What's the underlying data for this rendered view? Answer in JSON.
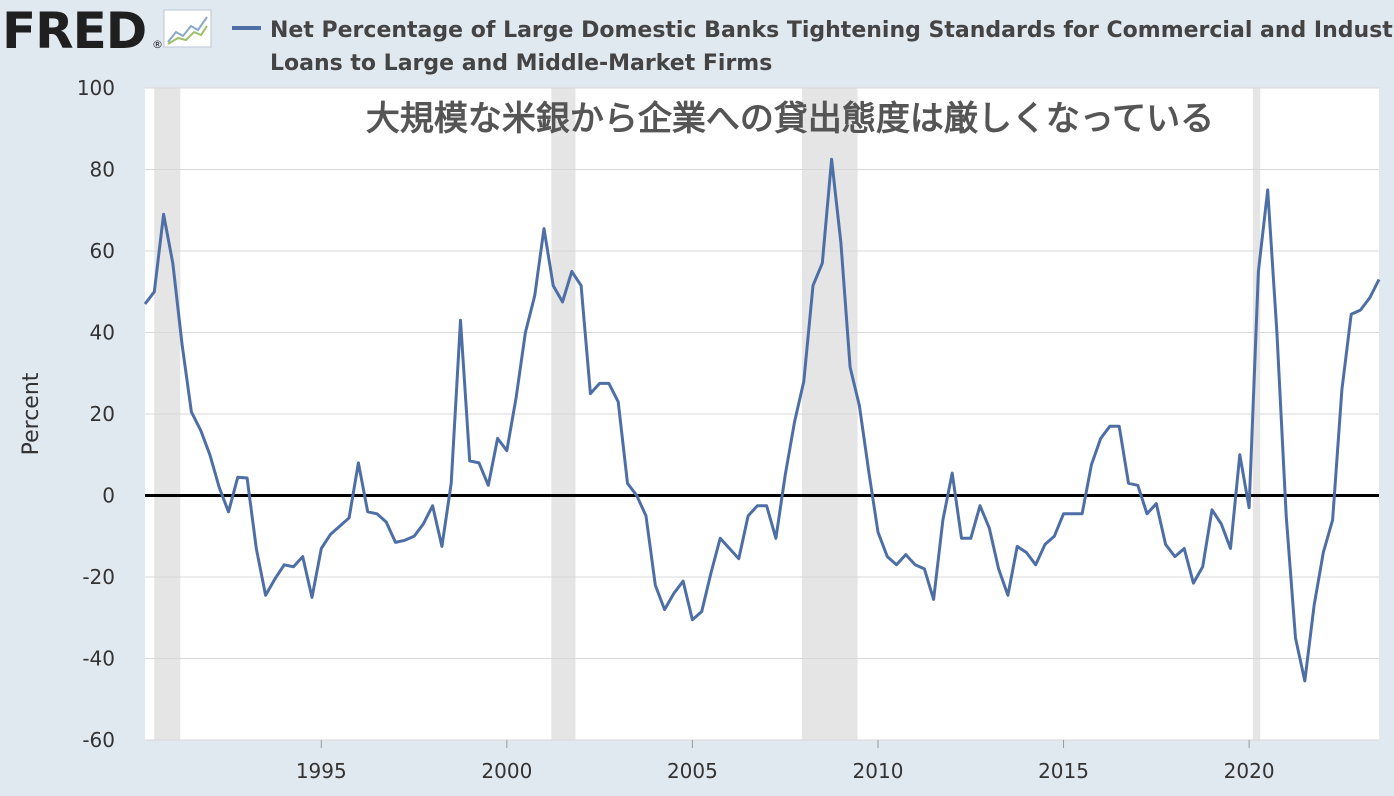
{
  "header": {
    "logo_text": "FRED",
    "logo_mark": "®",
    "logo_graph_icon": "line-graph-icon",
    "legend_title_line1": "Net Percentage of Large Domestic Banks Tightening Standards for Commercial and Industrial",
    "legend_title_line2": "Loans to Large and Middle-Market Firms"
  },
  "annotation": "大規模な米銀から企業への貸出態度は厳しくなっている",
  "colors": {
    "background": "#e1e9f0",
    "plot_background": "#ffffff",
    "series": "#4e6fa6",
    "recession": "#e5e5e5",
    "grid": "#d8d8d8",
    "zero_line": "#000000",
    "text": "#333333",
    "annotation": "#555555"
  },
  "chart_data": {
    "type": "line",
    "ylabel": "Percent",
    "ylim": [
      -60,
      100
    ],
    "yticks": [
      "100",
      "80",
      "60",
      "40",
      "20",
      "0",
      "-20",
      "-40",
      "-60"
    ],
    "xlim": [
      1990.25,
      2023.5
    ],
    "xticks": [
      "1995",
      "2000",
      "2005",
      "2010",
      "2015",
      "2020"
    ],
    "grid": true,
    "zero_line": true,
    "recessions": [
      [
        1990.5,
        1991.2
      ],
      [
        2001.2,
        2001.85
      ],
      [
        2007.95,
        2009.45
      ],
      [
        2020.1,
        2020.3
      ]
    ],
    "series": [
      {
        "name": "Net Percentage of Large Domestic Banks Tightening Standards for Commercial and Industrial Loans to Large and Middle-Market Firms",
        "x": [
          1990.25,
          1990.5,
          1990.75,
          1991.0,
          1991.25,
          1991.5,
          1991.75,
          1992.0,
          1992.25,
          1992.5,
          1992.75,
          1993.0,
          1993.25,
          1993.5,
          1993.75,
          1994.0,
          1994.25,
          1994.5,
          1994.75,
          1995.0,
          1995.25,
          1995.5,
          1995.75,
          1996.0,
          1996.25,
          1996.5,
          1996.75,
          1997.0,
          1997.25,
          1997.5,
          1997.75,
          1998.0,
          1998.25,
          1998.5,
          1998.75,
          1999.0,
          1999.25,
          1999.5,
          1999.75,
          2000.0,
          2000.25,
          2000.5,
          2000.75,
          2001.0,
          2001.25,
          2001.5,
          2001.75,
          2002.0,
          2002.25,
          2002.5,
          2002.75,
          2003.0,
          2003.25,
          2003.5,
          2003.75,
          2004.0,
          2004.25,
          2004.5,
          2004.75,
          2005.0,
          2005.25,
          2005.5,
          2005.75,
          2006.0,
          2006.25,
          2006.5,
          2006.75,
          2007.0,
          2007.25,
          2007.5,
          2007.75,
          2008.0,
          2008.25,
          2008.5,
          2008.75,
          2009.0,
          2009.25,
          2009.5,
          2009.75,
          2010.0,
          2010.25,
          2010.5,
          2010.75,
          2011.0,
          2011.25,
          2011.5,
          2011.75,
          2012.0,
          2012.25,
          2012.5,
          2012.75,
          2013.0,
          2013.25,
          2013.5,
          2013.75,
          2014.0,
          2014.25,
          2014.5,
          2014.75,
          2015.0,
          2015.25,
          2015.5,
          2015.75,
          2016.0,
          2016.25,
          2016.5,
          2016.75,
          2017.0,
          2017.25,
          2017.5,
          2017.75,
          2018.0,
          2018.25,
          2018.5,
          2018.75,
          2019.0,
          2019.25,
          2019.5,
          2019.75,
          2020.0,
          2020.25,
          2020.5,
          2020.75,
          2021.0,
          2021.25,
          2021.5,
          2021.75,
          2022.0,
          2022.25,
          2022.5,
          2022.75,
          2023.0,
          2023.25,
          2023.5
        ],
        "values": [
          47,
          50,
          69,
          57,
          37,
          20.5,
          16,
          10,
          2,
          -4,
          4.5,
          4.3,
          -13,
          -24.5,
          -20.5,
          -17,
          -17.5,
          -15,
          -25,
          -13,
          -9.5,
          -7.5,
          -5.5,
          8,
          -4,
          -4.5,
          -6.5,
          -11.5,
          -11,
          -10,
          -7,
          -2.5,
          -12.5,
          3,
          43,
          8.5,
          8,
          2.5,
          14,
          11,
          24,
          40,
          49,
          65.5,
          51.5,
          47.5,
          55,
          51.5,
          25,
          27.5,
          27.5,
          23,
          3,
          0,
          -5,
          -22,
          -28,
          -24,
          -21,
          -30.5,
          -28.5,
          -19,
          -10.5,
          -13,
          -15.5,
          -5,
          -2.5,
          -2.5,
          -10.5,
          5,
          18,
          28,
          51.5,
          57,
          82.5,
          62,
          31.5,
          22,
          6,
          -9,
          -15,
          -17,
          -14.5,
          -17,
          -18,
          -25.5,
          -6,
          5.5,
          -10.5,
          -10.5,
          -2.5,
          -8,
          -18,
          -24.5,
          -12.5,
          -14,
          -17,
          -12,
          -10,
          -4.5,
          -4.5,
          -4.5,
          7.5,
          14,
          17,
          17,
          3,
          2.5,
          -4.5,
          -2,
          -12,
          -15,
          -13,
          -21.5,
          -17.5,
          -3.5,
          -7,
          -13,
          10,
          -3,
          55,
          75,
          40,
          -5,
          -35,
          -45.5,
          -27,
          -14,
          -6,
          26,
          44.5,
          45.5,
          48.5,
          53
        ]
      }
    ]
  }
}
